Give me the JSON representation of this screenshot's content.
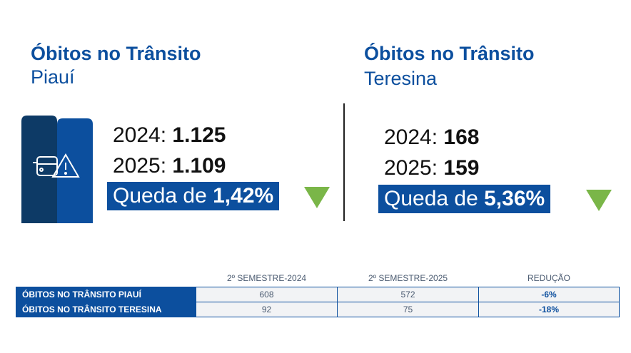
{
  "piaui": {
    "title": "Óbitos no Trânsito",
    "subtitle": "Piauí",
    "y2024_label": "2024:",
    "y2024": "1.125",
    "y2025_label": "2025:",
    "y2025": "1.109",
    "drop_label": "Queda de",
    "drop": "1,42%"
  },
  "teresina": {
    "title": "Óbitos no Trânsito",
    "subtitle": "Teresina",
    "y2024_label": "2024:",
    "y2024": "168",
    "y2025_label": "2025:",
    "y2025": "159",
    "drop_label": "Queda de",
    "drop": "5,36%"
  },
  "table": {
    "headers": [
      "",
      "2º SEMESTRE-2024",
      "2º SEMESTRE-2025",
      "REDUÇÃO"
    ],
    "rows": [
      [
        "ÓBITOS NO TRÂNSITO PIAUÍ",
        "608",
        "572",
        "-6%"
      ],
      [
        "ÓBITOS NO TRÂNSITO TERESINA",
        "92",
        "75",
        "-18%"
      ]
    ]
  },
  "colors": {
    "primary": "#0c4f9e",
    "dark": "#0d3a66",
    "green": "#7ab648"
  }
}
